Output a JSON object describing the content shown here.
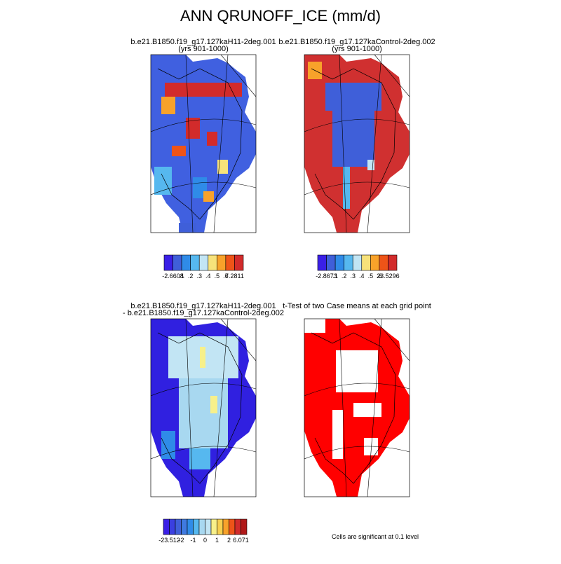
{
  "title": "ANN QRUNOFF_ICE (mm/d)",
  "panels": [
    {
      "title": [
        "b.e21.B1850.f19_g17.127kaH11-2deg.001",
        "(yrs 901-1000)"
      ],
      "colorbar": {
        "colors": [
          "#3a1fe6",
          "#3f5fd9",
          "#2f8be8",
          "#56b8ef",
          "#c2e5f4",
          "#f7e27a",
          "#f8a22a",
          "#ee5418",
          "#d22b2b"
        ],
        "labels": [
          "-2.6608",
          ".1",
          ".2",
          ".3",
          ".4",
          ".5",
          ".6",
          "7.2811"
        ]
      }
    },
    {
      "title": [
        "b.e21.B1850.f19_g17.127kaControl-2deg.002",
        "(yrs 901-1000)"
      ],
      "colorbar": {
        "colors": [
          "#3a1fe6",
          "#3f5fd9",
          "#2f8be8",
          "#56b8ef",
          "#c2e5f4",
          "#f7e27a",
          "#f8a22a",
          "#ee5418",
          "#d22b2b"
        ],
        "labels": [
          "-2.8673",
          ".1",
          ".2",
          ".3",
          ".4",
          ".5",
          ".6",
          "23.5296"
        ]
      }
    },
    {
      "title": [
        "b.e21.B1850.f19_g17.127kaH11-2deg.001",
        "- b.e21.B1850.f19_g17.127kaControl-2deg.002"
      ],
      "colorbar": {
        "colors": [
          "#3a1fe6",
          "#3a3fe0",
          "#3f5fd9",
          "#3f7ae0",
          "#2f8be8",
          "#56b8ef",
          "#a8d8f0",
          "#c2e5f4",
          "#f7f08a",
          "#f7d050",
          "#f8a22a",
          "#ee5418",
          "#d22b2b",
          "#b01818"
        ],
        "labels": [
          "-23.512",
          "-2",
          "-1",
          "0",
          "1",
          "2",
          "6.071"
        ]
      }
    },
    {
      "title": [
        "t-Test of two Case means at each grid point"
      ],
      "note": "Cells are significant at 0.1 level"
    }
  ]
}
